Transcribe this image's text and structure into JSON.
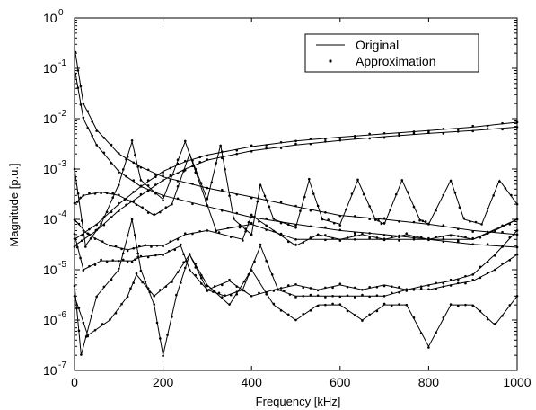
{
  "chart_data": {
    "type": "line",
    "xlabel": "Frequency [kHz]",
    "ylabel": "Magnitude [p.u.]",
    "xlim": [
      0,
      1000
    ],
    "ylim": [
      1e-07,
      1
    ],
    "yscale": "log",
    "grid": false,
    "legend_position": "top-right",
    "x_ticks": [
      "0",
      "200",
      "400",
      "600",
      "800",
      "1000"
    ],
    "y_ticks": [
      {
        "base": "10",
        "exp": "0",
        "value": 1
      },
      {
        "base": "10",
        "exp": "-1",
        "value": 0.1
      },
      {
        "base": "10",
        "exp": "-2",
        "value": 0.01
      },
      {
        "base": "10",
        "exp": "-3",
        "value": 0.001
      },
      {
        "base": "10",
        "exp": "-4",
        "value": 0.0001
      },
      {
        "base": "10",
        "exp": "-5",
        "value": 1e-05
      },
      {
        "base": "10",
        "exp": "-6",
        "value": 1e-06
      },
      {
        "base": "10",
        "exp": "-7",
        "value": 1e-07
      }
    ],
    "legend": [
      {
        "label": "Original",
        "style": "solid-line"
      },
      {
        "label": "Approximation",
        "style": "dots"
      }
    ],
    "line_color": "#000000",
    "series": [
      {
        "x": [
          2,
          20,
          50,
          100,
          150,
          200,
          300,
          400,
          500,
          600,
          700,
          800,
          900,
          1000
        ],
        "y": [
          0.2,
          0.02,
          0.006,
          0.002,
          0.0011,
          0.0007,
          0.00042,
          0.00028,
          0.00018,
          0.00012,
          0.0001,
          8e-05,
          6e-05,
          5e-05
        ]
      },
      {
        "x": [
          2,
          20,
          50,
          100,
          150,
          200,
          300,
          400,
          500,
          600,
          700,
          800,
          900,
          1000
        ],
        "y": [
          0.08,
          0.01,
          0.003,
          0.0009,
          0.00045,
          0.0003,
          0.00018,
          0.00011,
          8e-05,
          6e-05,
          5e-05,
          4e-05,
          3.2e-05,
          2.8e-05
        ]
      },
      {
        "x": [
          0,
          50,
          100,
          150,
          200,
          250,
          300,
          400,
          500,
          600,
          700,
          800,
          900,
          1000
        ],
        "y": [
          4e-05,
          8e-05,
          0.0002,
          0.00045,
          0.0009,
          0.0014,
          0.0019,
          0.0028,
          0.0036,
          0.0043,
          0.005,
          0.0058,
          0.0068,
          0.0085
        ]
      },
      {
        "x": [
          0,
          50,
          100,
          150,
          200,
          250,
          300,
          400,
          500,
          600,
          700,
          800,
          900,
          1000
        ],
        "y": [
          3e-05,
          6e-05,
          0.00015,
          0.0003,
          0.0006,
          0.001,
          0.0015,
          0.0023,
          0.003,
          0.0037,
          0.0044,
          0.0051,
          0.0058,
          0.0068
        ]
      },
      {
        "x": [
          0,
          25,
          60,
          100,
          130,
          150,
          200,
          250,
          320,
          400,
          500,
          600,
          700,
          800,
          900,
          1000
        ],
        "y": [
          0.001,
          3e-05,
          8e-05,
          0.0005,
          0.0035,
          0.0006,
          0.00025,
          0.0035,
          6e-05,
          8e-05,
          4e-05,
          4e-05,
          4e-05,
          4e-05,
          4e-05,
          0.0001
        ]
      },
      {
        "x": [
          0,
          20,
          60,
          100,
          140,
          180,
          220,
          260,
          300,
          330,
          360,
          400,
          420,
          450,
          500,
          530,
          560,
          600,
          640,
          680,
          700,
          740,
          780,
          800,
          850,
          880,
          920,
          960,
          1000
        ],
        "y": [
          0.0002,
          0.0003,
          0.00035,
          0.0003,
          0.0002,
          0.00012,
          0.0002,
          0.002,
          0.00025,
          0.003,
          0.0001,
          5e-05,
          0.0005,
          0.0001,
          7e-05,
          0.0006,
          0.0001,
          8e-05,
          0.0006,
          0.0001,
          8e-05,
          0.0006,
          0.0001,
          8e-05,
          0.0006,
          0.0001,
          8e-05,
          0.0006,
          0.0002
        ]
      },
      {
        "x": [
          0,
          30,
          80,
          120,
          160,
          200,
          250,
          300,
          380,
          400,
          450,
          500,
          550,
          600,
          650,
          700,
          750,
          800,
          850,
          900,
          950,
          1000
        ],
        "y": [
          0.0001,
          5e-05,
          3e-05,
          2.5e-05,
          3e-05,
          3e-05,
          5e-05,
          6e-05,
          4e-05,
          0.00012,
          6e-05,
          3e-05,
          5e-05,
          4e-05,
          5e-05,
          4e-05,
          5e-05,
          4e-05,
          5e-05,
          4e-05,
          6e-05,
          0.0001
        ]
      },
      {
        "x": [
          0,
          20,
          60,
          100,
          130,
          150,
          200,
          240,
          260,
          300,
          340,
          380,
          420,
          460,
          500,
          550,
          600,
          650,
          700,
          750,
          800,
          850,
          900,
          950,
          1000
        ],
        "y": [
          5e-05,
          1e-05,
          1.5e-05,
          1.5e-05,
          1.5e-05,
          1.8e-05,
          2e-05,
          3e-05,
          1e-05,
          4e-06,
          3e-06,
          4e-06,
          3e-05,
          4e-06,
          3e-06,
          3e-06,
          3e-06,
          3e-06,
          3e-06,
          4e-06,
          4e-06,
          5e-06,
          6e-06,
          1e-05,
          2e-05
        ]
      },
      {
        "x": [
          0,
          15,
          50,
          100,
          130,
          150,
          180,
          200,
          230,
          260,
          300,
          350,
          400,
          450,
          500,
          550,
          600,
          650,
          700,
          750,
          800,
          850,
          900,
          950,
          1000
        ],
        "y": [
          5e-06,
          2e-07,
          3e-06,
          1e-05,
          0.0001,
          1e-05,
          2e-06,
          2e-07,
          3e-06,
          2e-05,
          5e-06,
          2e-06,
          1e-05,
          2e-06,
          1e-06,
          2e-06,
          2e-06,
          1e-06,
          2e-06,
          2e-06,
          3e-07,
          2e-06,
          2e-06,
          8e-07,
          3e-06
        ]
      },
      {
        "x": [
          0,
          30,
          80,
          120,
          140,
          180,
          220,
          260,
          300,
          350,
          400,
          450,
          500,
          550,
          600,
          650,
          700,
          750,
          800,
          850,
          900,
          950,
          1000
        ],
        "y": [
          3e-06,
          5e-07,
          1e-06,
          3e-06,
          8e-06,
          3e-06,
          6e-06,
          2e-05,
          4e-06,
          6e-06,
          3e-06,
          4e-06,
          5e-06,
          4e-06,
          5e-06,
          4e-06,
          5e-06,
          4e-06,
          5e-06,
          6e-06,
          8e-06,
          2e-05,
          6e-05
        ]
      }
    ]
  }
}
